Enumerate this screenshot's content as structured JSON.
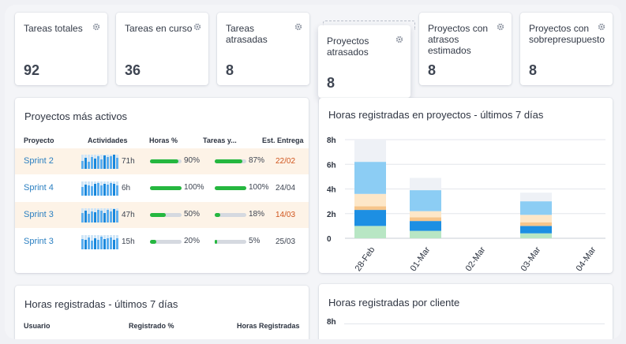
{
  "kpis": [
    {
      "label": "Tareas totales",
      "value": "92"
    },
    {
      "label": "Tareas en curso",
      "value": "36"
    },
    {
      "label": "Tareas atrasadas",
      "value": "8"
    },
    {
      "label": "Proyectos atrasados",
      "value": "8"
    },
    {
      "label": "Proyectos con atrasos estimados",
      "value": "8"
    },
    {
      "label": "Proyectos con sobrepresupuesto",
      "value": "8"
    }
  ],
  "active_projects": {
    "title": "Proyectos más activos",
    "headers": [
      "Proyecto",
      "Actividades",
      "Horas %",
      "Tareas y...",
      "Est. Entrega"
    ],
    "rows": [
      {
        "name": "Sprint 2",
        "hours": "71h",
        "hours_pct": "90%",
        "hours_fill": 0.9,
        "tasks_pct": "87%",
        "tasks_fill": 0.87,
        "delivery": "22/02",
        "late": true
      },
      {
        "name": "Sprint 4",
        "hours": "6h",
        "hours_pct": "100%",
        "hours_fill": 1.0,
        "tasks_pct": "100%",
        "tasks_fill": 1.0,
        "delivery": "24/04",
        "late": false
      },
      {
        "name": "Sprint 3",
        "hours": "47h",
        "hours_pct": "50%",
        "hours_fill": 0.5,
        "tasks_pct": "18%",
        "tasks_fill": 0.18,
        "delivery": "14/03",
        "late": true
      },
      {
        "name": "Sprint 3",
        "hours": "15h",
        "hours_pct": "20%",
        "hours_fill": 0.2,
        "tasks_pct": "5%",
        "tasks_fill": 0.05,
        "delivery": "25/03",
        "late": false
      }
    ]
  },
  "hours_users": {
    "title": "Horas registradas - últimos 7 días",
    "headers": [
      "Usuario",
      "Registrado %",
      "Horas Registradas"
    ]
  },
  "hours_by_client": {
    "title": "Horas registradas por cliente",
    "first_tick": "8h"
  },
  "chart_data": {
    "type": "bar",
    "title": "Horas registradas en proyectos - últimos 7 días",
    "categories": [
      "28-Feb",
      "01-Mar",
      "02-Mar",
      "03-Mar",
      "04-Mar"
    ],
    "ylim": [
      0,
      8
    ],
    "yticks": [
      "0",
      "2h",
      "4h",
      "6h",
      "8h"
    ],
    "grid": true,
    "stacked": true,
    "series": [
      {
        "color": "#b8e6c4",
        "values": [
          1.0,
          0.6,
          0,
          0.4,
          0
        ]
      },
      {
        "color": "#1d8fe3",
        "values": [
          1.3,
          0.8,
          0,
          0.6,
          0
        ]
      },
      {
        "color": "#f6c58b",
        "values": [
          0.3,
          0.3,
          0,
          0.3,
          0
        ]
      },
      {
        "color": "#fde7c8",
        "values": [
          1.0,
          0.5,
          0,
          0.6,
          0
        ]
      },
      {
        "color": "#8ccdf4",
        "values": [
          2.6,
          1.7,
          0,
          1.1,
          0
        ]
      },
      {
        "color": "#eef1f6",
        "values": [
          1.8,
          1.0,
          0,
          0.7,
          0
        ]
      }
    ]
  }
}
